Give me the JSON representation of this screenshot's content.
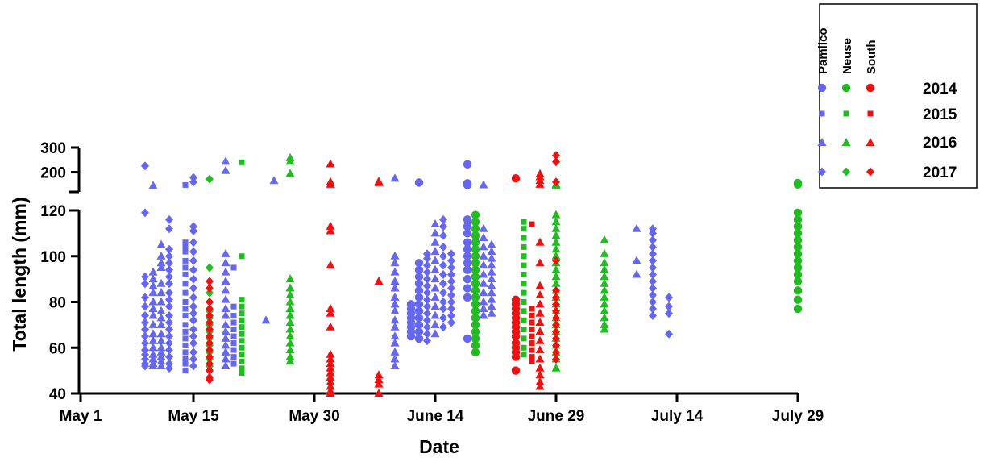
{
  "chart_data": {
    "type": "scatter",
    "title": "",
    "xlabel": "Date",
    "ylabel": "Total length (mm)",
    "x_ticks": [
      "May 1",
      "May 15",
      "May 30",
      "June 14",
      "June 29",
      "July 14",
      "July 29"
    ],
    "y_ticks_lower": [
      "40",
      "60",
      "80",
      "100",
      "120"
    ],
    "y_ticks_upper": [
      "200",
      "300"
    ],
    "ylim_lower": [
      40,
      120
    ],
    "ylim_upper": [
      120,
      300
    ],
    "axis_break": true,
    "grid": false,
    "legend": {
      "position": "top-right",
      "column_headers": [
        "Pamlico",
        "Neuse",
        "South"
      ],
      "row_labels": [
        "2014",
        "2015",
        "2016",
        "2017"
      ],
      "marker_by_year": {
        "2014": "circle",
        "2015": "square",
        "2016": "triangle",
        "2017": "diamond"
      },
      "color_by_river": {
        "Pamlico": "#6666ee",
        "Neuse": "#22bb22",
        "South": "#ee1111"
      }
    },
    "series": [
      {
        "name": "Pamlico",
        "year": "2017",
        "date": "2017-05-09",
        "values": [
          225,
          119,
          91,
          88,
          82,
          78,
          74,
          71,
          68,
          65,
          62,
          59,
          57,
          55,
          53,
          52
        ]
      },
      {
        "name": "Pamlico",
        "year": "2016",
        "date": "2016-05-10",
        "values": [
          145,
          93,
          90,
          87,
          84,
          80,
          77,
          74,
          70,
          66,
          63,
          60,
          57,
          55,
          53,
          52
        ]
      },
      {
        "name": "Pamlico",
        "year": "2016",
        "date": "2016-05-11",
        "values": [
          105,
          100,
          97,
          95,
          88,
          84,
          80,
          76,
          73,
          70,
          66,
          63,
          60,
          58,
          56,
          54,
          52
        ]
      },
      {
        "name": "Pamlico",
        "year": "2017",
        "date": "2017-05-12",
        "values": [
          116,
          112,
          103,
          100,
          97,
          94,
          91,
          88,
          84,
          81,
          78,
          74,
          71,
          68,
          65,
          62,
          59,
          56,
          53,
          51
        ]
      },
      {
        "name": "Pamlico",
        "year": "2015",
        "date": "2015-05-14",
        "values": [
          148,
          106,
          104,
          102,
          98,
          95,
          92,
          88,
          84,
          80,
          77,
          74,
          70,
          67,
          64,
          61,
          58,
          55,
          53,
          50
        ]
      },
      {
        "name": "Pamlico",
        "year": "2017",
        "date": "2017-05-15",
        "values": [
          178,
          160,
          113,
          111,
          106,
          102,
          98,
          94,
          90,
          86,
          82,
          78,
          75,
          72,
          68,
          65,
          62,
          58,
          55,
          52
        ]
      },
      {
        "name": "Pamlico",
        "year": "2016",
        "date": "2016-05-19",
        "values": [
          243,
          206,
          101,
          97,
          93,
          89,
          85,
          81,
          77,
          74,
          70,
          67,
          64,
          61,
          58,
          55,
          52
        ]
      },
      {
        "name": "Pamlico",
        "year": "2015",
        "date": "2015-05-20",
        "values": [
          95,
          78,
          74,
          71,
          68,
          65,
          62,
          59,
          56,
          53
        ]
      },
      {
        "name": "Pamlico",
        "year": "2016",
        "date": "2016-05-24",
        "values": [
          72
        ]
      },
      {
        "name": "Pamlico",
        "year": "2016",
        "date": "2016-05-25",
        "values": [
          165
        ]
      },
      {
        "name": "Pamlico",
        "year": "2016",
        "date": "2016-06-09",
        "values": [
          175,
          100,
          97,
          93,
          89,
          86,
          82,
          79,
          76,
          72,
          69,
          65,
          62,
          58,
          55,
          52
        ]
      },
      {
        "name": "Pamlico",
        "year": "2014",
        "date": "2014-06-11",
        "values": [
          79,
          77,
          75,
          73,
          71,
          69,
          67,
          65
        ]
      },
      {
        "name": "Pamlico",
        "year": "2014",
        "date": "2014-06-12",
        "values": [
          158,
          97,
          94,
          91,
          88,
          85,
          82,
          79,
          76,
          73,
          70,
          67,
          64
        ]
      },
      {
        "name": "Pamlico",
        "year": "2017",
        "date": "2017-06-13",
        "values": [
          101,
          99,
          96,
          93,
          90,
          87,
          84,
          81,
          78,
          75,
          72,
          69,
          66,
          63
        ]
      },
      {
        "name": "Pamlico",
        "year": "2016",
        "date": "2016-06-14",
        "values": [
          114,
          110,
          106,
          102,
          98,
          94,
          90,
          86,
          82,
          78,
          74,
          70,
          66
        ]
      },
      {
        "name": "Pamlico",
        "year": "2017",
        "date": "2017-06-15",
        "values": [
          116,
          113,
          109,
          104,
          100,
          96,
          92,
          88,
          84,
          80,
          77,
          73,
          69
        ]
      },
      {
        "name": "Pamlico",
        "year": "2017",
        "date": "2017-06-16",
        "values": [
          101,
          98,
          95,
          92,
          89,
          86,
          83,
          80,
          77,
          74,
          71
        ]
      },
      {
        "name": "Pamlico",
        "year": "2014",
        "date": "2014-06-18",
        "values": [
          232,
          155,
          150,
          148,
          116,
          113,
          110,
          106,
          103,
          100,
          97,
          94,
          90,
          86,
          82,
          64
        ]
      },
      {
        "name": "Pamlico",
        "year": "2016",
        "date": "2016-06-20",
        "values": [
          148,
          112,
          108,
          104,
          100,
          96,
          92,
          88,
          84,
          80,
          77,
          74
        ]
      },
      {
        "name": "Pamlico",
        "year": "2016",
        "date": "2016-06-21",
        "values": [
          105,
          102,
          99,
          96,
          93,
          90,
          87,
          84,
          81,
          78,
          75
        ]
      },
      {
        "name": "Pamlico",
        "year": "2016",
        "date": "2016-07-09",
        "values": [
          112,
          98,
          92
        ]
      },
      {
        "name": "Pamlico",
        "year": "2017",
        "date": "2017-07-11",
        "values": [
          112,
          110,
          107,
          104,
          101,
          98,
          95,
          92,
          89,
          86,
          83,
          80,
          77,
          74
        ]
      },
      {
        "name": "Pamlico",
        "year": "2017",
        "date": "2017-07-13",
        "values": [
          82,
          78,
          75,
          66
        ]
      },
      {
        "name": "Neuse",
        "year": "2017",
        "date": "2017-05-17",
        "values": [
          172,
          95,
          84,
          80,
          76,
          73,
          70,
          67,
          64,
          61,
          58,
          55,
          52,
          50
        ]
      },
      {
        "name": "Neuse",
        "year": "2015",
        "date": "2015-05-21",
        "values": [
          240,
          100,
          81,
          78,
          75,
          72,
          69,
          66,
          63,
          60,
          57,
          54,
          51,
          49
        ]
      },
      {
        "name": "Neuse",
        "year": "2016",
        "date": "2016-05-27",
        "values": [
          258,
          243,
          194,
          90,
          86,
          83,
          80,
          77,
          74,
          71,
          68,
          65,
          62,
          59,
          56,
          54
        ]
      },
      {
        "name": "Neuse",
        "year": "2014",
        "date": "2014-06-19",
        "values": [
          118,
          115,
          112,
          109,
          106,
          103,
          100,
          97,
          94,
          91,
          88,
          85,
          82,
          79,
          76,
          73,
          70,
          67,
          64,
          61,
          58
        ]
      },
      {
        "name": "Neuse",
        "year": "2015",
        "date": "2015-06-25",
        "values": [
          115,
          112,
          108,
          104,
          100,
          96,
          92,
          88,
          84,
          80,
          76,
          72,
          68,
          64,
          60,
          57
        ]
      },
      {
        "name": "Neuse",
        "year": "2016",
        "date": "2016-06-29",
        "values": [
          150,
          145,
          118,
          115,
          112,
          109,
          106,
          103,
          100,
          97,
          94,
          91,
          88,
          85,
          82,
          79,
          76,
          73,
          70,
          67,
          64,
          61,
          58,
          55,
          51
        ]
      },
      {
        "name": "Neuse",
        "year": "2016",
        "date": "2016-07-05",
        "values": [
          107,
          101,
          97,
          94,
          91,
          88,
          85,
          82,
          79,
          76,
          73,
          70,
          68
        ]
      },
      {
        "name": "Neuse",
        "year": "2014",
        "date": "2014-07-29",
        "values": [
          156,
          150,
          119,
          116,
          113,
          110,
          107,
          104,
          101,
          98,
          95,
          92,
          89,
          85,
          81,
          77
        ]
      },
      {
        "name": "South",
        "year": "2017",
        "date": "2017-05-17",
        "values": [
          89,
          86,
          80,
          77,
          74,
          71,
          68,
          65,
          62,
          59,
          56,
          53,
          50,
          47,
          46
        ]
      },
      {
        "name": "South",
        "year": "2016",
        "date": "2016-06-01",
        "values": [
          233,
          160,
          150,
          113,
          111,
          96,
          77,
          75,
          69,
          57,
          55,
          53,
          51,
          49,
          47,
          45,
          43,
          41,
          40
        ]
      },
      {
        "name": "South",
        "year": "2016",
        "date": "2016-06-07",
        "values": [
          162,
          157,
          89,
          48,
          46,
          44,
          40
        ]
      },
      {
        "name": "South",
        "year": "2014",
        "date": "2014-06-24",
        "values": [
          175,
          81,
          79,
          77,
          75,
          73,
          71,
          69,
          67,
          65,
          62,
          60,
          58,
          56,
          50
        ]
      },
      {
        "name": "South",
        "year": "2015",
        "date": "2015-06-26",
        "values": [
          114,
          77,
          74,
          71,
          68,
          65,
          62,
          59,
          56,
          54
        ]
      },
      {
        "name": "South",
        "year": "2016",
        "date": "2016-06-27",
        "values": [
          193,
          180,
          165,
          150,
          106,
          97,
          87,
          83,
          79,
          75,
          71,
          67,
          63,
          59,
          55,
          51,
          48,
          45,
          43
        ]
      },
      {
        "name": "South",
        "year": "2017",
        "date": "2017-06-29",
        "values": [
          268,
          242,
          160,
          98,
          85,
          82,
          79,
          76,
          73,
          70,
          67,
          64,
          61,
          58,
          55
        ]
      }
    ]
  }
}
